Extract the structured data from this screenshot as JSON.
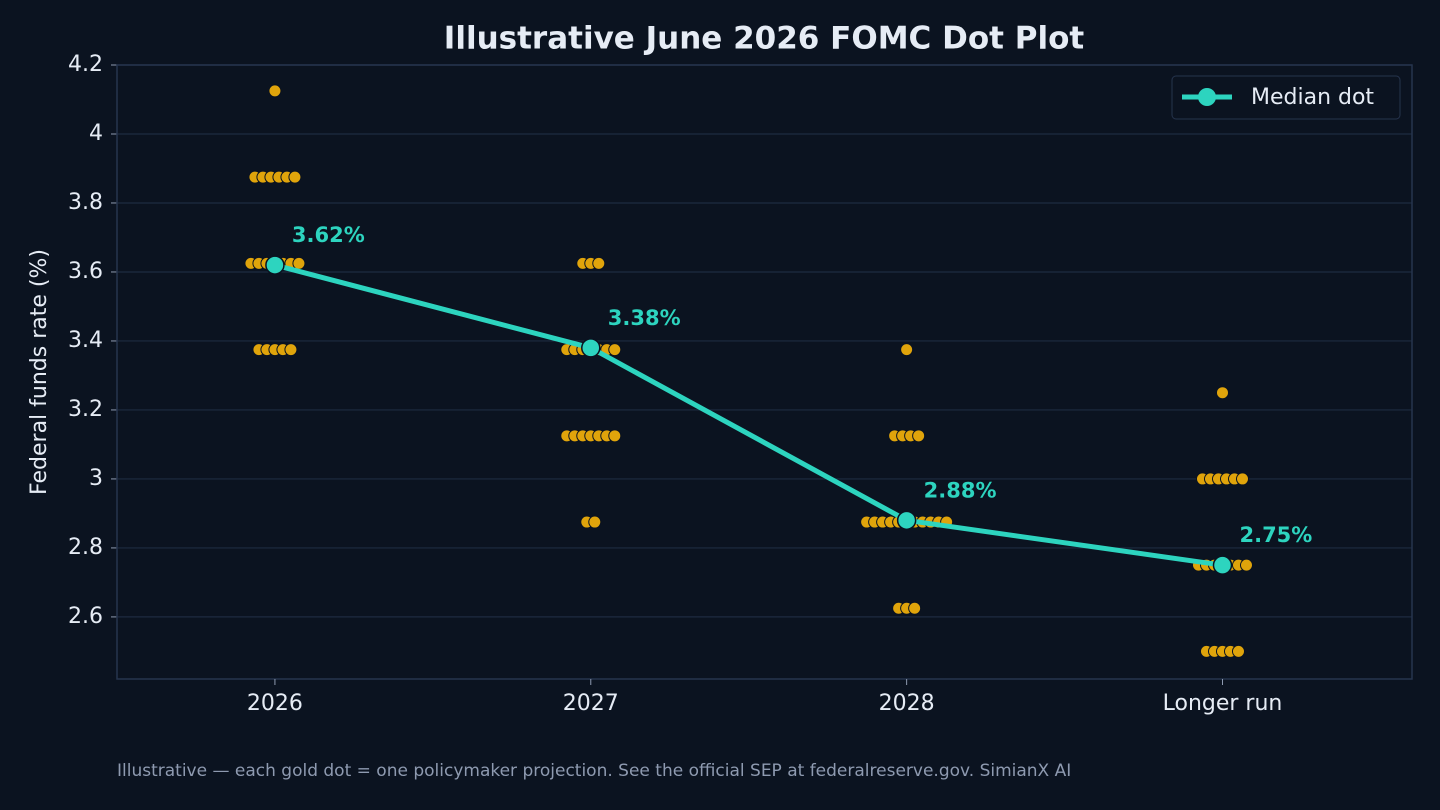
{
  "chart_data": {
    "type": "dotplot",
    "title": "Illustrative June 2026 FOMC Dot Plot",
    "ylabel": "Federal funds rate (%)",
    "footnote": "Illustrative — each gold dot = one policymaker projection. See the official SEP at federalreserve.gov. SimianX AI",
    "categories": [
      "2026",
      "2027",
      "2028",
      "Longer run"
    ],
    "dots": {
      "color": "#e0a40b",
      "values": [
        [
          4.125,
          3.875,
          3.875,
          3.875,
          3.875,
          3.875,
          3.875,
          3.625,
          3.625,
          3.625,
          3.625,
          3.625,
          3.625,
          3.625,
          3.375,
          3.375,
          3.375,
          3.375,
          3.375
        ],
        [
          3.625,
          3.625,
          3.625,
          3.375,
          3.375,
          3.375,
          3.375,
          3.375,
          3.375,
          3.375,
          3.125,
          3.125,
          3.125,
          3.125,
          3.125,
          3.125,
          3.125,
          2.875,
          2.875
        ],
        [
          3.375,
          3.125,
          3.125,
          3.125,
          3.125,
          2.875,
          2.875,
          2.875,
          2.875,
          2.875,
          2.875,
          2.875,
          2.875,
          2.875,
          2.875,
          2.875,
          2.625,
          2.625,
          2.625
        ],
        [
          3.25,
          3.0,
          3.0,
          3.0,
          3.0,
          3.0,
          3.0,
          2.75,
          2.75,
          2.75,
          2.75,
          2.75,
          2.75,
          2.75,
          2.5,
          2.5,
          2.5,
          2.5,
          2.5
        ]
      ]
    },
    "series": [
      {
        "name": "Median dot",
        "color": "#2dd4bf",
        "values": [
          3.62,
          3.38,
          2.88,
          2.75
        ],
        "value_labels": [
          "3.62%",
          "3.38%",
          "2.88%",
          "2.75%"
        ]
      }
    ],
    "ylim": [
      2.42,
      4.2
    ],
    "yticks": [
      2.6,
      2.8,
      3.0,
      3.2,
      3.4,
      3.6,
      3.8,
      4.0,
      4.2
    ],
    "grid": true,
    "legend": "upper right"
  }
}
